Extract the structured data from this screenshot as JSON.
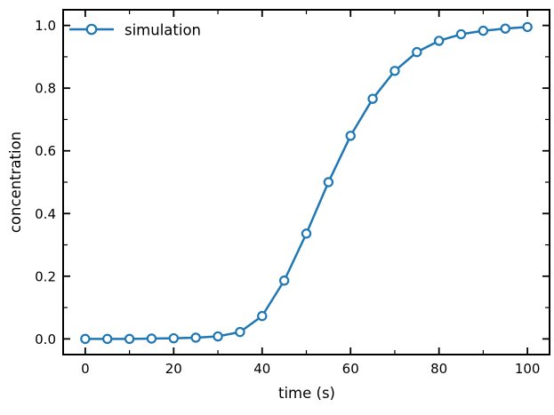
{
  "figure": {
    "background": "#ffffff",
    "axes_edge_color": "#000000"
  },
  "chart_data": {
    "type": "line",
    "title": "",
    "xlabel": "time (s)",
    "ylabel": "concentration",
    "xlim": [
      -5,
      105
    ],
    "ylim": [
      -0.05,
      1.05
    ],
    "xticks": [
      0,
      20,
      40,
      60,
      80,
      100
    ],
    "yticks": [
      0.0,
      0.2,
      0.4,
      0.6,
      0.8,
      1.0
    ],
    "minor_xticks": [
      10,
      30,
      50,
      70,
      90
    ],
    "minor_yticks": [
      0.1,
      0.3,
      0.5,
      0.7,
      0.9
    ],
    "grid": false,
    "tick_direction": "in",
    "ticks_on_all_sides": true,
    "legend": {
      "position": "upper-left",
      "frame": false,
      "entries": [
        "simulation"
      ]
    },
    "series": [
      {
        "name": "simulation",
        "color": "#1f77b4",
        "marker": "open-circle",
        "marker_fill": "#ffffff",
        "x": [
          0,
          5,
          10,
          15,
          20,
          25,
          30,
          35,
          40,
          45,
          50,
          55,
          60,
          65,
          70,
          75,
          80,
          85,
          90,
          95,
          100
        ],
        "y": [
          0.0,
          0.0,
          0.0,
          0.001,
          0.002,
          0.004,
          0.008,
          0.022,
          0.073,
          0.186,
          0.336,
          0.5,
          0.648,
          0.766,
          0.855,
          0.915,
          0.951,
          0.972,
          0.983,
          0.99,
          0.995
        ]
      }
    ]
  }
}
